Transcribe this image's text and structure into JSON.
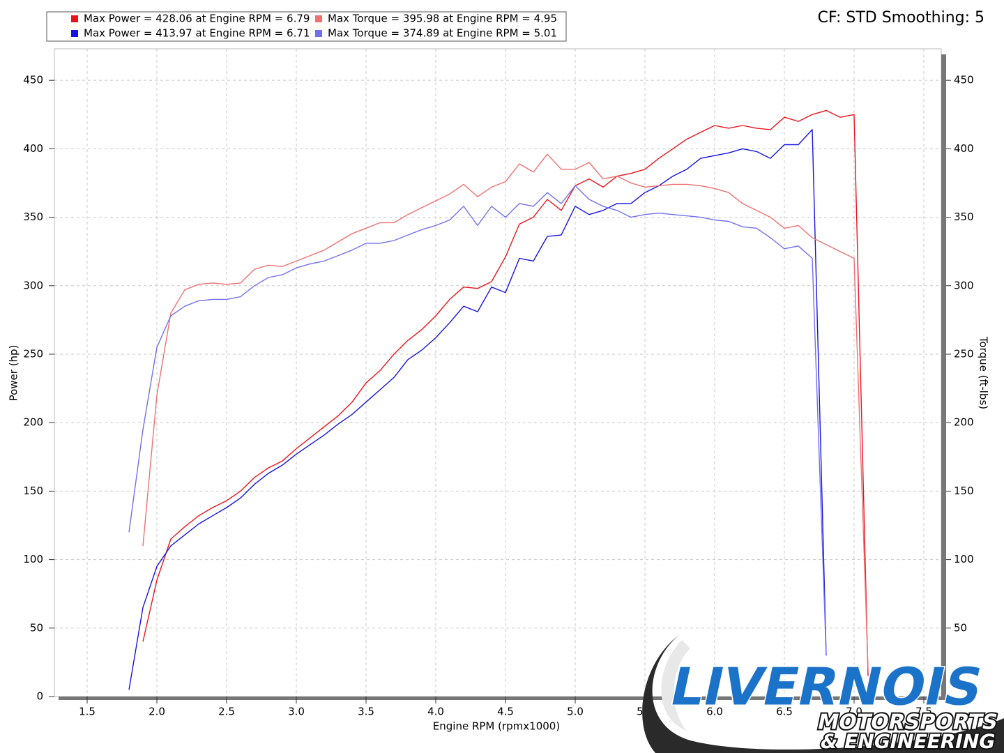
{
  "chart_data": {
    "type": "line",
    "title": "CF: STD Smoothing: 5",
    "xlabel": "Engine RPM (rpmx1000)",
    "ylabel": "Power (hp)",
    "y2label": "Torque (ft-lbs)",
    "grid": true,
    "xlim": [
      1.265,
      7.625
    ],
    "ylim": [
      0,
      473
    ],
    "y2lim": [
      0,
      473
    ],
    "xticks": [
      1.5,
      {
        "value": 2,
        "label": "2.0"
      },
      2.5,
      {
        "value": 3,
        "label": "3.0"
      },
      3.5,
      {
        "value": 4,
        "label": "4.0"
      },
      4.5,
      {
        "value": 5,
        "label": "5.0"
      },
      5.5,
      {
        "value": 6,
        "label": "6.0"
      },
      6.5,
      {
        "value": 7,
        "label": "7.0"
      },
      7.5
    ],
    "yticks": [
      0,
      50,
      100,
      150,
      200,
      250,
      300,
      350,
      400,
      450
    ],
    "y2ticks": [
      50,
      100,
      150,
      200,
      250,
      300,
      350,
      400,
      450
    ],
    "x": [
      1.8,
      1.9,
      2.0,
      2.1,
      2.2,
      2.3,
      2.4,
      2.5,
      2.6,
      2.7,
      2.8,
      2.9,
      3.0,
      3.1,
      3.2,
      3.3,
      3.4,
      3.5,
      3.6,
      3.7,
      3.8,
      3.9,
      4.0,
      4.1,
      4.2,
      4.3,
      4.4,
      4.5,
      4.6,
      4.7,
      4.8,
      4.9,
      5.0,
      5.1,
      5.2,
      5.3,
      5.4,
      5.5,
      5.6,
      5.7,
      5.8,
      5.9,
      6.0,
      6.1,
      6.2,
      6.3,
      6.4,
      6.5,
      6.6,
      6.7,
      6.8,
      6.9,
      7.0,
      7.1
    ],
    "series": [
      {
        "name": "Max Power = 428.06 at Engine RPM = 6.79",
        "color": "#e8141a",
        "axis": "y",
        "values": [
          null,
          40,
          85,
          115,
          124,
          132,
          138,
          143,
          150,
          160,
          167,
          172,
          181,
          189,
          197,
          205,
          215,
          229,
          238,
          250,
          260,
          268,
          278,
          290,
          299,
          298,
          303,
          321,
          345,
          350,
          363,
          355,
          373,
          378,
          372,
          380,
          382,
          385,
          393,
          400,
          407,
          412,
          417,
          415,
          417,
          415,
          414,
          423,
          420,
          425,
          428,
          423,
          425,
          15
        ]
      },
      {
        "name": "Max Power = 413.97 at Engine RPM = 6.71",
        "color": "#1414e0",
        "axis": "y",
        "values": [
          5,
          65,
          95,
          110,
          118,
          126,
          132,
          138,
          145,
          155,
          163,
          169,
          177,
          184,
          191,
          199,
          206,
          215,
          224,
          233,
          246,
          253,
          262,
          273,
          285,
          281,
          299,
          295,
          320,
          318,
          336,
          337,
          358,
          352,
          355,
          360,
          360,
          368,
          373,
          380,
          385,
          393,
          395,
          397,
          400,
          398,
          393,
          403,
          403,
          414,
          30,
          null,
          null,
          null
        ]
      },
      {
        "name": "Max Torque = 395.98 at Engine RPM = 4.95",
        "color": "#f07070",
        "axis": "y2",
        "values": [
          null,
          110,
          220,
          280,
          297,
          301,
          302,
          301,
          302,
          312,
          315,
          314,
          318,
          322,
          326,
          332,
          338,
          342,
          346,
          346,
          352,
          357,
          362,
          367,
          374,
          365,
          372,
          376,
          389,
          383,
          396,
          385,
          385,
          390,
          378,
          380,
          375,
          372,
          373,
          374,
          374,
          373,
          371,
          368,
          360,
          355,
          350,
          342,
          344,
          335,
          330,
          325,
          320,
          20
        ]
      },
      {
        "name": "Max Torque = 374.89 at Engine RPM = 5.01",
        "color": "#7070f0",
        "axis": "y2",
        "values": [
          120,
          195,
          255,
          278,
          285,
          289,
          290,
          290,
          292,
          300,
          306,
          308,
          313,
          316,
          318,
          322,
          326,
          331,
          331,
          333,
          337,
          341,
          344,
          348,
          358,
          344,
          358,
          350,
          360,
          358,
          368,
          360,
          373,
          363,
          358,
          355,
          350,
          352,
          353,
          352,
          351,
          350,
          348,
          347,
          343,
          342,
          335,
          327,
          329,
          320,
          30,
          null,
          null,
          null
        ]
      }
    ]
  },
  "logo": {
    "name": "LIVERNOIS",
    "line1": "MOTORSPORTS",
    "line2": "& ENGINEERING"
  }
}
